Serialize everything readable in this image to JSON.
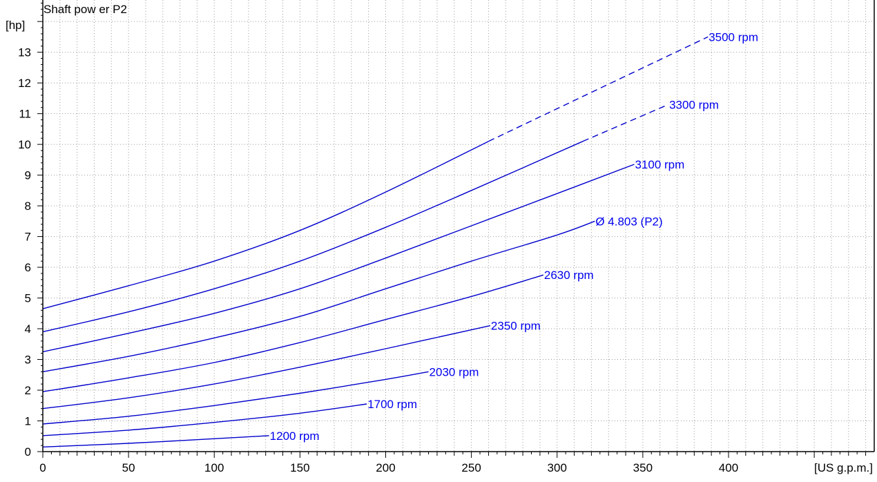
{
  "chart_data": {
    "type": "line",
    "title": "Shaft pow er P2",
    "ylabel": "[hp]",
    "xlabel": "[US g.p.m.]",
    "xlim": [
      0,
      485
    ],
    "ylim": [
      0,
      14.7
    ],
    "x_ticks": [
      0,
      50,
      100,
      150,
      200,
      250,
      300,
      350,
      400
    ],
    "x_tick_labels": [
      "0",
      "50",
      "100",
      "150",
      "200",
      "250",
      "300",
      "350",
      "400"
    ],
    "y_ticks": [
      0,
      1,
      2,
      3,
      4,
      5,
      6,
      7,
      8,
      9,
      10,
      11,
      12,
      13
    ],
    "y_tick_labels": [
      "0",
      "1",
      "2",
      "3",
      "4",
      "5",
      "6",
      "7",
      "8",
      "9",
      "10",
      "11",
      "12",
      "13"
    ],
    "grid": true,
    "line_color": "#0000cc",
    "label_color": "#0000ee",
    "series": [
      {
        "name": "3500 rpm",
        "x": [
          0,
          50,
          100,
          150,
          200,
          260
        ],
        "y": [
          4.65,
          5.4,
          6.2,
          7.2,
          8.45,
          10.1
        ],
        "dashed_to": [
          388,
          13.5
        ]
      },
      {
        "name": "3300 rpm",
        "x": [
          0,
          50,
          100,
          150,
          200,
          250,
          315
        ],
        "y": [
          3.9,
          4.55,
          5.3,
          6.2,
          7.3,
          8.5,
          10.1
        ],
        "dashed_to": [
          365,
          11.3
        ]
      },
      {
        "name": "3100 rpm",
        "x": [
          0,
          50,
          100,
          150,
          200,
          250,
          300,
          345
        ],
        "y": [
          3.25,
          3.85,
          4.5,
          5.3,
          6.3,
          7.35,
          8.4,
          9.35
        ]
      },
      {
        "name": "Ø 4.803 (P2)",
        "x": [
          0,
          50,
          100,
          150,
          200,
          250,
          300,
          322
        ],
        "y": [
          2.6,
          3.1,
          3.7,
          4.4,
          5.3,
          6.2,
          7.05,
          7.5
        ]
      },
      {
        "name": "2630 rpm",
        "x": [
          0,
          50,
          100,
          150,
          200,
          250,
          292
        ],
        "y": [
          1.95,
          2.4,
          2.9,
          3.55,
          4.3,
          5.05,
          5.75
        ]
      },
      {
        "name": "2350 rpm",
        "x": [
          0,
          50,
          100,
          150,
          200,
          261
        ],
        "y": [
          1.4,
          1.75,
          2.2,
          2.75,
          3.35,
          4.1
        ]
      },
      {
        "name": "2030 rpm",
        "x": [
          0,
          50,
          100,
          150,
          200,
          225
        ],
        "y": [
          0.9,
          1.15,
          1.5,
          1.9,
          2.35,
          2.6
        ]
      },
      {
        "name": "1700 rpm",
        "x": [
          0,
          50,
          100,
          150,
          189
        ],
        "y": [
          0.52,
          0.7,
          0.95,
          1.25,
          1.55
        ]
      },
      {
        "name": "1200 rpm",
        "x": [
          0,
          50,
          100,
          132
        ],
        "y": [
          0.15,
          0.27,
          0.42,
          0.52
        ]
      }
    ]
  }
}
